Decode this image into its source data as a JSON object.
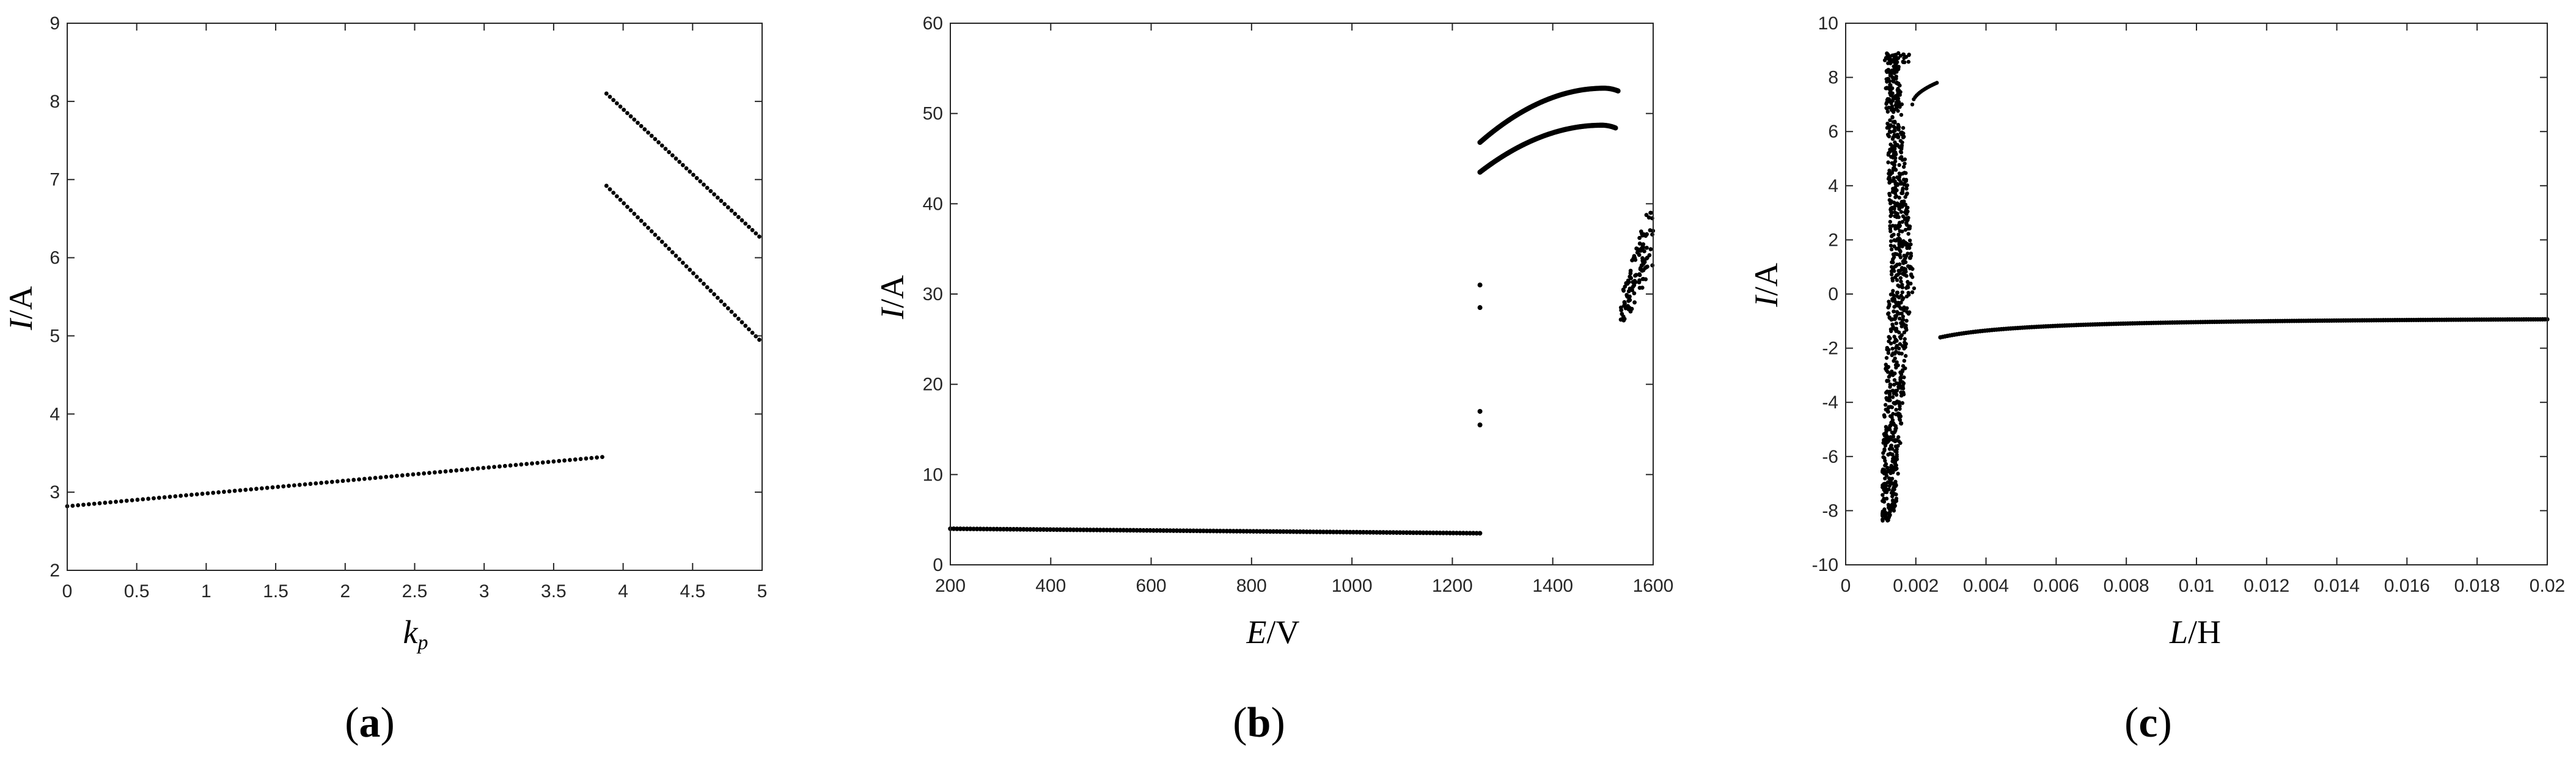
{
  "chart_data": [
    {
      "type": "scatter",
      "panel_label": "a",
      "xlabel_italic": "k",
      "xlabel_sub": "p",
      "ylabel_italic": "I",
      "ylabel_rest": "/A",
      "xlim": [
        0,
        5
      ],
      "ylim": [
        2,
        9
      ],
      "xticks": [
        0,
        0.5,
        1,
        1.5,
        2,
        2.5,
        3,
        3.5,
        4,
        4.5,
        5
      ],
      "xtick_labels": [
        "0",
        "0.5",
        "1",
        "1.5",
        "2",
        "2.5",
        "3",
        "3.5",
        "4",
        "4.5",
        "5"
      ],
      "yticks": [
        2,
        3,
        4,
        5,
        6,
        7,
        8,
        9
      ],
      "ytick_labels": [
        "2",
        "3",
        "4",
        "5",
        "6",
        "7",
        "8",
        "9"
      ],
      "grid": false,
      "series": [
        {
          "segment": "lower",
          "x_range": [
            0,
            3.85
          ],
          "y_range": [
            2.82,
            3.45
          ],
          "points": 100
        },
        {
          "segment": "upper-1",
          "x_range": [
            3.88,
            4.98
          ],
          "y_range": [
            8.1,
            6.27
          ],
          "points": 45
        },
        {
          "segment": "upper-2",
          "x_range": [
            3.88,
            4.98
          ],
          "y_range": [
            6.92,
            4.95
          ],
          "points": 45
        }
      ]
    },
    {
      "type": "scatter",
      "panel_label": "b",
      "xlabel_italic": "E",
      "xlabel_rest": "/V",
      "ylabel_italic": "I",
      "ylabel_rest": "/A",
      "xlim": [
        200,
        1600
      ],
      "ylim": [
        0,
        60
      ],
      "xticks": [
        200,
        400,
        600,
        800,
        1000,
        1200,
        1400,
        1600
      ],
      "xtick_labels": [
        "200",
        "400",
        "600",
        "800",
        "1000",
        "1200",
        "1400",
        "1600"
      ],
      "yticks": [
        0,
        10,
        20,
        30,
        40,
        50,
        60
      ],
      "ytick_labels": [
        "0",
        "10",
        "20",
        "30",
        "40",
        "50",
        "60"
      ],
      "grid": false,
      "series": [
        {
          "segment": "low-branch",
          "x_range": [
            200,
            1255
          ],
          "y_range": [
            4.0,
            3.5
          ]
        },
        {
          "segment": "isolated-points",
          "points": [
            [
              1255,
              31.0
            ],
            [
              1255,
              28.5
            ],
            [
              1255,
              17.0
            ],
            [
              1255,
              15.5
            ]
          ]
        },
        {
          "segment": "upper-arc",
          "x_range": [
            1255,
            1530
          ],
          "y_start": 46.8,
          "y_peak": 52.8,
          "y_end": 52.5
        },
        {
          "segment": "lower-arc",
          "x_range": [
            1255,
            1525
          ],
          "y_start": 43.5,
          "y_peak": 48.7,
          "y_end": 48.4
        },
        {
          "segment": "chaotic-cloud",
          "x_range": [
            1535,
            1600
          ],
          "y_range": [
            26,
            39
          ]
        }
      ]
    },
    {
      "type": "scatter",
      "panel_label": "c",
      "xlabel_italic": "L",
      "xlabel_rest": "/H",
      "ylabel_italic": "I",
      "ylabel_rest": "/A",
      "xlim": [
        0,
        0.02
      ],
      "ylim": [
        -10,
        10
      ],
      "xticks": [
        0,
        0.002,
        0.004,
        0.006,
        0.008,
        0.01,
        0.012,
        0.014,
        0.016,
        0.018,
        0.02
      ],
      "xtick_labels": [
        "0",
        "0.002",
        "0.004",
        "0.006",
        "0.008",
        "0.01",
        "0.012",
        "0.014",
        "0.016",
        "0.018",
        "0.02"
      ],
      "yticks": [
        -10,
        -8,
        -6,
        -4,
        -2,
        0,
        2,
        4,
        6,
        8,
        10
      ],
      "ytick_labels": [
        "-10",
        "-8",
        "-6",
        "-4",
        "-2",
        "0",
        "2",
        "4",
        "6",
        "8",
        "10"
      ],
      "grid": false,
      "series": [
        {
          "segment": "chaotic-band",
          "x_range": [
            0.0011,
            0.0019
          ],
          "y_range": [
            -8.4,
            8.9
          ]
        },
        {
          "segment": "rising-tail",
          "x_range": [
            0.0019,
            0.0026
          ],
          "y_range": [
            7.0,
            7.8
          ]
        },
        {
          "segment": "recovery-curve",
          "x_range": [
            0.0027,
            0.02
          ],
          "y_start": -1.6,
          "y_end": -0.48
        }
      ]
    }
  ]
}
